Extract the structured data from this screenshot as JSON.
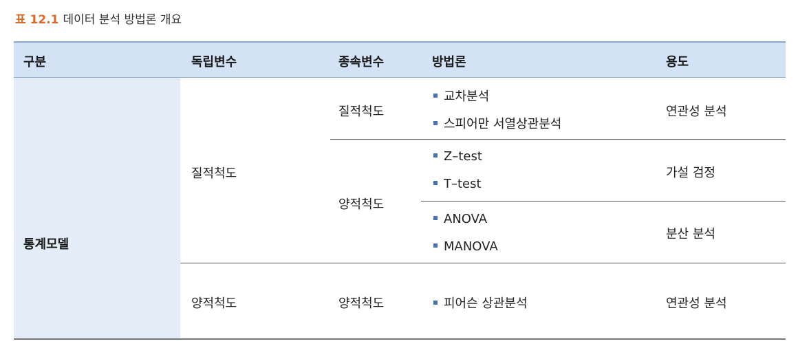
{
  "caption": {
    "label": "표 12.1",
    "title": "데이터 분석 방법론 개요"
  },
  "header": {
    "category": "구분",
    "independent": "독립변수",
    "dependent": "종속변수",
    "method": "방법론",
    "purpose": "용도"
  },
  "category": "통계모델",
  "rows": {
    "qual_indep": "질적척도",
    "quant_indep": "양적척도",
    "qual_dep": "질적척도",
    "quant_dep_1": "양적척도",
    "quant_dep_2": "양적척도",
    "methods": {
      "crosstab": "교차분석",
      "spearman": "스피어만 서열상관분석",
      "ztest": "Z–test",
      "ttest": "T–test",
      "anova": "ANOVA",
      "manova": "MANOVA",
      "pearson": "피어슨 상관분석"
    },
    "purposes": {
      "correlation_1": "연관성 분석",
      "hypothesis": "가설 검정",
      "variance": "분산 분석",
      "correlation_2": "연관성 분석"
    }
  },
  "colors": {
    "header_bg": "#d3e2f4",
    "category_bg": "#e3ecf7",
    "bullet": "#4a72b0",
    "caption_label": "#d9692b"
  }
}
